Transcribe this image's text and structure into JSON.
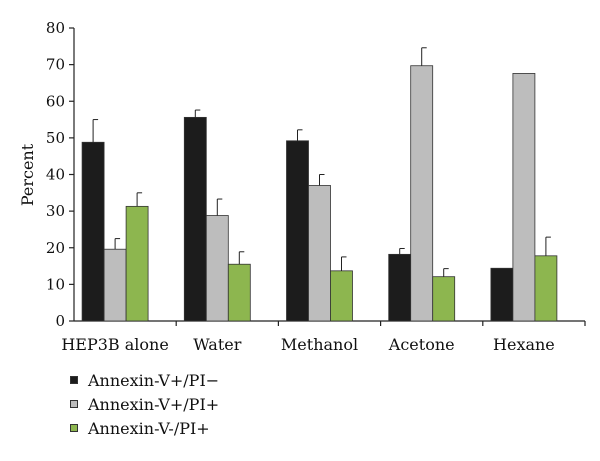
{
  "chart_data": {
    "type": "bar",
    "title": "",
    "xlabel": "",
    "ylabel": "Percent",
    "ylim": [
      0,
      80
    ],
    "yticks": [
      0,
      10,
      20,
      30,
      40,
      50,
      60,
      70,
      80
    ],
    "grid": false,
    "legend_position": "bottom-left",
    "categories": [
      "HEP3B alone",
      "Water",
      "Methanol",
      "Acetone",
      "Hexane"
    ],
    "series": [
      {
        "name": "Annexin-V+/PI−",
        "color": "#1c1c1c",
        "values": [
          48.8,
          55.6,
          49.2,
          18.2,
          14.4
        ],
        "errors": [
          6.2,
          2.0,
          3.0,
          1.6,
          null
        ]
      },
      {
        "name": "Annexin-V+/PI+",
        "color": "#bdbdbd",
        "values": [
          19.6,
          28.8,
          37.0,
          69.7,
          67.6
        ],
        "errors": [
          2.9,
          4.5,
          3.0,
          4.9,
          null
        ]
      },
      {
        "name": "Annexin-V-/PI+",
        "color": "#8db64f",
        "values": [
          31.3,
          15.5,
          13.7,
          12.1,
          17.8
        ],
        "errors": [
          3.7,
          3.4,
          3.8,
          2.2,
          5.1
        ]
      }
    ]
  }
}
